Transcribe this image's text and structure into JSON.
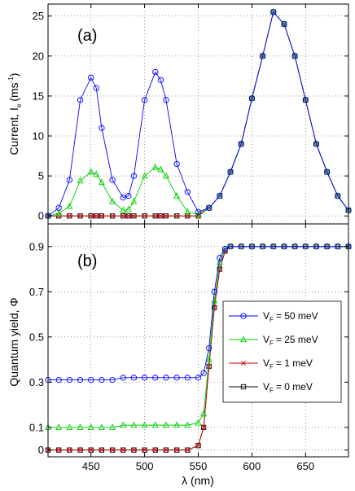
{
  "chart_data": [
    {
      "type": "line",
      "panel_label": "(a)",
      "ylabel": "Current, I",
      "ylabel_sub": "e",
      "ylabel_unit": "(ms",
      "ylabel_unit_sup": "-1",
      "ylabel_unit_close": ")",
      "xlim": [
        410,
        690
      ],
      "ylim": [
        -1,
        26.5
      ],
      "yticks": [
        0,
        5,
        10,
        15,
        20,
        25
      ],
      "grid": true,
      "x": [
        410,
        420,
        430,
        440,
        450,
        455,
        460,
        470,
        480,
        485,
        490,
        500,
        510,
        515,
        520,
        530,
        540,
        550,
        560,
        570,
        580,
        590,
        600,
        610,
        620,
        630,
        640,
        650,
        660,
        670,
        680,
        690
      ],
      "series": [
        {
          "name": "50 meV",
          "color": "#0000ff",
          "marker": "circle",
          "values": [
            0.0,
            1.0,
            4.5,
            14.5,
            17.3,
            16.0,
            11.0,
            4.5,
            2.3,
            2.5,
            5.0,
            14.5,
            18.0,
            17.0,
            14.5,
            6.5,
            3.0,
            0.5,
            1.0,
            2.5,
            5.5,
            9.0,
            14.7,
            20.0,
            25.5,
            24.0,
            20.0,
            14.5,
            9.0,
            5.5,
            2.5,
            0.7
          ]
        },
        {
          "name": "25 meV",
          "color": "#00cc00",
          "marker": "triangle",
          "values": [
            0.0,
            0.3,
            1.2,
            4.4,
            5.5,
            5.2,
            4.2,
            1.8,
            0.7,
            0.8,
            1.8,
            5.0,
            6.1,
            5.8,
            5.0,
            2.5,
            0.5,
            0.2,
            1.0,
            2.5,
            5.5,
            9.0,
            14.7,
            20.0,
            25.5,
            24.0,
            20.0,
            14.5,
            9.0,
            5.5,
            2.5,
            0.7
          ]
        },
        {
          "name": "1 meV",
          "color": "#cc0000",
          "marker": "x",
          "values": [
            0.0,
            0.0,
            0.0,
            0.0,
            0.0,
            0.0,
            0.0,
            0.0,
            0.0,
            0.0,
            0.0,
            0.0,
            0.0,
            0.0,
            0.0,
            0.0,
            0.0,
            0.0,
            1.0,
            2.5,
            5.5,
            9.0,
            14.7,
            20.0,
            25.5,
            24.0,
            20.0,
            14.5,
            9.0,
            5.5,
            2.5,
            0.7
          ]
        },
        {
          "name": "0 meV",
          "color": "#000000",
          "marker": "square",
          "values": [
            0.0,
            0.0,
            0.0,
            0.0,
            0.0,
            0.0,
            0.0,
            0.0,
            0.0,
            0.0,
            0.0,
            0.0,
            0.0,
            0.0,
            0.0,
            0.0,
            0.0,
            0.0,
            1.0,
            2.5,
            5.5,
            9.0,
            14.7,
            20.0,
            25.5,
            24.0,
            20.0,
            14.5,
            9.0,
            5.5,
            2.5,
            0.7
          ]
        }
      ]
    },
    {
      "type": "line",
      "panel_label": "(b)",
      "ylabel": "Quantum yield, Φ",
      "xlabel": "λ (nm)",
      "xlim": [
        410,
        690
      ],
      "ylim": [
        -0.03,
        1.0
      ],
      "xticks": [
        450,
        500,
        550,
        600,
        650
      ],
      "yticks": [
        0,
        0.1,
        0.3,
        0.5,
        0.7,
        0.9
      ],
      "ytick_labels": [
        "0",
        "0.1",
        "0.3",
        "0.5",
        "0.7",
        "0.9"
      ],
      "grid": true,
      "legend_position": "center-right",
      "x": [
        410,
        420,
        430,
        440,
        450,
        460,
        470,
        480,
        490,
        500,
        510,
        520,
        530,
        540,
        550,
        555,
        560,
        565,
        570,
        575,
        580,
        590,
        600,
        610,
        620,
        630,
        640,
        650,
        660,
        670,
        680,
        690
      ],
      "series": [
        {
          "name": "50 meV",
          "color": "#0000ff",
          "marker": "circle",
          "values": [
            0.31,
            0.31,
            0.31,
            0.31,
            0.31,
            0.31,
            0.31,
            0.32,
            0.32,
            0.32,
            0.32,
            0.32,
            0.32,
            0.32,
            0.32,
            0.34,
            0.45,
            0.7,
            0.85,
            0.89,
            0.9,
            0.9,
            0.9,
            0.9,
            0.9,
            0.9,
            0.9,
            0.9,
            0.9,
            0.9,
            0.9,
            0.9
          ]
        },
        {
          "name": "25 meV",
          "color": "#00cc00",
          "marker": "triangle",
          "values": [
            0.1,
            0.1,
            0.1,
            0.1,
            0.1,
            0.1,
            0.1,
            0.11,
            0.11,
            0.11,
            0.11,
            0.11,
            0.11,
            0.11,
            0.12,
            0.16,
            0.4,
            0.66,
            0.83,
            0.89,
            0.9,
            0.9,
            0.9,
            0.9,
            0.9,
            0.9,
            0.9,
            0.9,
            0.9,
            0.9,
            0.9,
            0.9
          ]
        },
        {
          "name": "1 meV",
          "color": "#cc0000",
          "marker": "x",
          "values": [
            0.0,
            0.0,
            0.0,
            0.0,
            0.0,
            0.0,
            0.0,
            0.0,
            0.0,
            0.0,
            0.0,
            0.0,
            0.0,
            0.0,
            0.02,
            0.1,
            0.37,
            0.63,
            0.8,
            0.88,
            0.9,
            0.9,
            0.9,
            0.9,
            0.9,
            0.9,
            0.9,
            0.9,
            0.9,
            0.9,
            0.9,
            0.9
          ]
        },
        {
          "name": "0 meV",
          "color": "#000000",
          "marker": "square",
          "values": [
            0.0,
            0.0,
            0.0,
            0.0,
            0.0,
            0.0,
            0.0,
            0.0,
            0.0,
            0.0,
            0.0,
            0.0,
            0.0,
            0.0,
            0.02,
            0.1,
            0.37,
            0.63,
            0.8,
            0.88,
            0.9,
            0.9,
            0.9,
            0.9,
            0.9,
            0.9,
            0.9,
            0.9,
            0.9,
            0.9,
            0.9,
            0.9
          ]
        }
      ]
    }
  ],
  "legend": {
    "prefix": "V",
    "prefix_sub": "F",
    "entries": [
      "= 50 meV",
      "= 25 meV",
      "= 1 meV",
      "= 0 meV"
    ]
  }
}
